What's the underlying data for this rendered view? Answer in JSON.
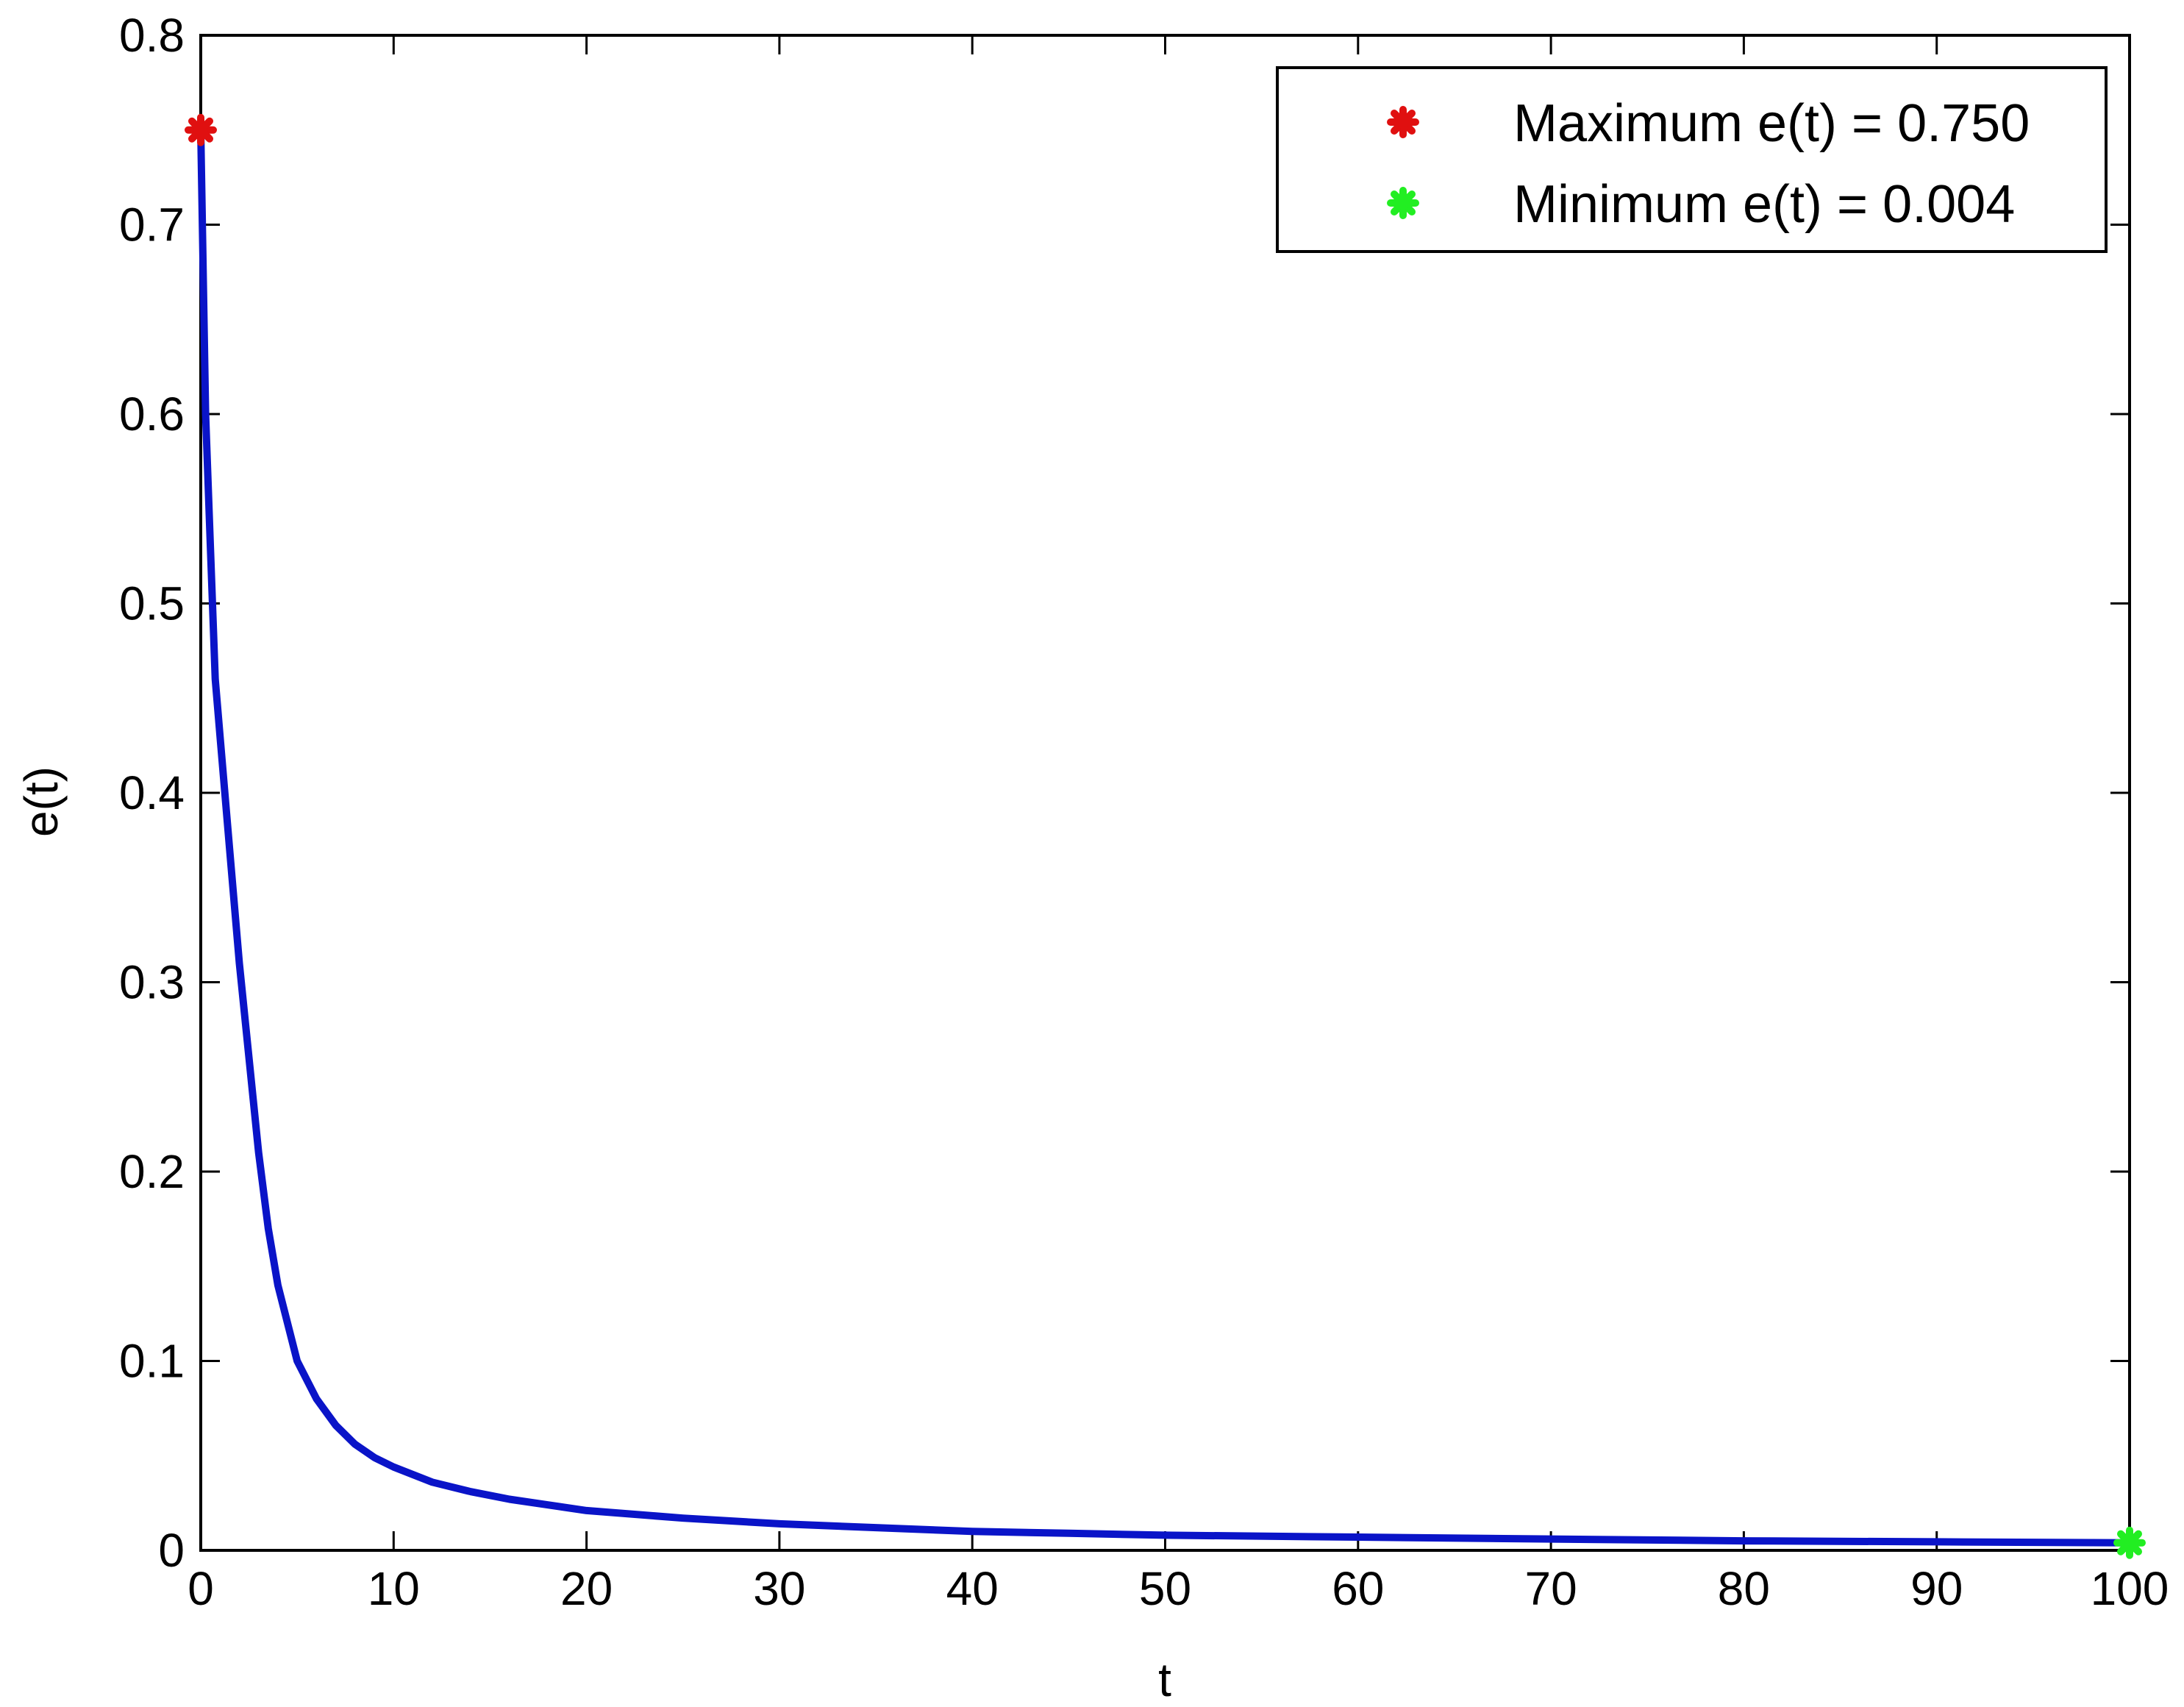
{
  "chart_data": {
    "type": "line",
    "xlabel": "t",
    "ylabel": "e(t)",
    "xlim": [
      0,
      100
    ],
    "ylim": [
      0,
      0.8
    ],
    "x_ticks": [
      "0",
      "10",
      "20",
      "30",
      "40",
      "50",
      "60",
      "70",
      "80",
      "90",
      "100"
    ],
    "y_ticks": [
      "0",
      "0.1",
      "0.2",
      "0.3",
      "0.4",
      "0.5",
      "0.6",
      "0.7",
      "0.8"
    ],
    "grid": false,
    "legend_position": "top-right",
    "series": [
      {
        "color": "#0a14c8",
        "x": [
          0,
          0.25,
          0.5,
          0.75,
          1,
          1.5,
          2,
          2.5,
          3,
          3.5,
          4,
          5,
          6,
          7,
          8,
          9,
          10,
          12,
          14,
          16,
          18,
          20,
          25,
          30,
          35,
          40,
          45,
          50,
          60,
          70,
          80,
          90,
          100
        ],
        "y": [
          0.75,
          0.6,
          0.53,
          0.46,
          0.43,
          0.37,
          0.31,
          0.26,
          0.21,
          0.17,
          0.14,
          0.1,
          0.08,
          0.066,
          0.056,
          0.049,
          0.044,
          0.036,
          0.031,
          0.027,
          0.024,
          0.021,
          0.017,
          0.014,
          0.012,
          0.01,
          0.009,
          0.008,
          0.007,
          0.006,
          0.005,
          0.0045,
          0.004
        ]
      }
    ],
    "markers": [
      {
        "label": "Maximum e(t) = 0.750",
        "x": 0,
        "y": 0.75,
        "color": "#e01010"
      },
      {
        "label": "Minimum e(t) = 0.004",
        "x": 100,
        "y": 0.004,
        "color": "#22ee22"
      }
    ]
  }
}
